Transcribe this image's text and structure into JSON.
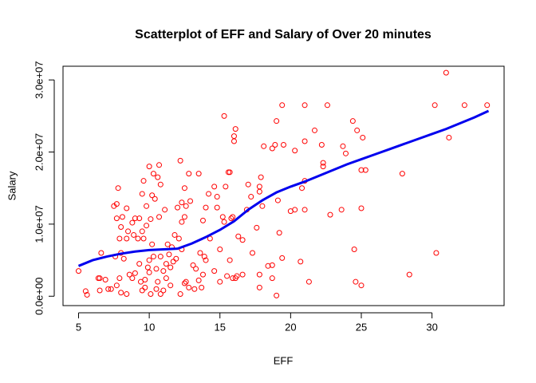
{
  "chart_data": {
    "type": "scatter",
    "title": "Scatterplot of EFF and Salary of Over 20 minutes",
    "x_label": "EFF",
    "y_label": "Salary",
    "xlim": [
      3.9,
      35.1
    ],
    "ylim": [
      -1300000,
      31900000
    ],
    "xticks": [
      5,
      10,
      15,
      20,
      25,
      30
    ],
    "yticks": [
      {
        "value": 0,
        "label": "0.0e+00"
      },
      {
        "value": 10000000,
        "label": "1.0e+07"
      },
      {
        "value": 20000000,
        "label": "2.0e+07"
      },
      {
        "value": 30000000,
        "label": "3.0e+07"
      }
    ],
    "color": "#ff0000",
    "x": [
      31.0,
      30.2,
      32.3,
      33.9,
      31.2,
      30.3,
      28.4,
      27.9,
      25.0,
      25.3,
      25.1,
      24.7,
      24.4,
      25.0,
      24.5,
      24.6,
      25.0,
      22.6,
      22.2,
      22.3,
      22.3,
      21.7,
      21.0,
      21.0,
      21.0,
      20.8,
      20.3,
      20.3,
      21.0,
      21.3,
      20.7,
      23.7,
      23.9,
      23.6,
      22.8,
      19.4,
      19.0,
      18.9,
      18.7,
      19.5,
      19.2,
      19.4,
      19.1,
      19.0,
      18.7,
      18.7,
      18.0,
      17.8,
      17.8,
      17.9,
      18.1,
      17.8,
      17.8,
      17.6,
      17.2,
      17.0,
      16.9,
      17.3,
      16.6,
      16.3,
      16.1,
      16.0,
      16.0,
      15.9,
      15.7,
      15.6,
      15.3,
      15.4,
      15.8,
      15.7,
      15.3,
      15.2,
      15.0,
      14.8,
      14.8,
      14.6,
      14.2,
      14.0,
      14.3,
      13.9,
      13.8,
      14.6,
      15.0,
      15.5,
      16.1,
      16.2,
      16.6,
      15.9,
      13.5,
      12.8,
      12.2,
      12.5,
      12.3,
      12.6,
      12.9,
      12.5,
      12.3,
      12.0,
      11.8,
      12.1,
      12.3,
      11.9,
      11.6,
      11.7,
      11.3,
      11.4,
      11.2,
      11.5,
      11.0,
      11.2,
      11.5,
      12.6,
      12.8,
      13.2,
      13.5,
      13.3,
      12.5,
      13.1,
      13.6,
      13.8,
      13.7,
      14.0,
      10.7,
      10.6,
      10.8,
      10.3,
      10.0,
      9.6,
      9.5,
      10.2,
      10.4,
      9.8,
      11.1,
      10.7,
      10.1,
      9.3,
      9.8,
      9.5,
      9.0,
      8.8,
      8.9,
      8.4,
      9.2,
      9.6,
      10.2,
      10.3,
      10.8,
      10.0,
      9.9,
      9.3,
      9.0,
      8.8,
      9.4,
      9.7,
      10.0,
      10.5,
      10.6,
      10.5,
      10.8,
      9.7,
      10.1,
      9.5,
      8.4,
      8.1,
      7.5,
      7.7,
      7.8,
      7.7,
      8.5,
      8.0,
      7.9,
      8.0,
      8.2,
      7.6,
      8.6,
      7.9,
      7.7,
      7.3,
      8.0,
      8.4,
      5.0,
      5.5,
      5.6,
      6.4,
      6.5,
      6.6,
      6.9,
      7.1,
      6.5,
      12.2,
      11.0,
      18.4,
      20.0
    ],
    "values": [
      31000000,
      26500000,
      26500000,
      26500000,
      22000000,
      6000000,
      3000000,
      17000000,
      17500000,
      17500000,
      22000000,
      23000000,
      24300000,
      12200000,
      6500000,
      2000000,
      1500000,
      26500000,
      21000000,
      18500000,
      18000000,
      23000000,
      26500000,
      21500000,
      16000000,
      15000000,
      20200000,
      12000000,
      12000000,
      2000000,
      4800000,
      20800000,
      19800000,
      12000000,
      11300000,
      26500000,
      24300000,
      21000000,
      20500000,
      21000000,
      8800000,
      5300000,
      13300000,
      100000,
      2500000,
      4300000,
      12500000,
      15200000,
      14500000,
      16500000,
      20800000,
      3000000,
      1200000,
      9500000,
      13800000,
      15500000,
      12000000,
      6000000,
      7800000,
      8300000,
      23200000,
      22200000,
      21500000,
      11000000,
      17200000,
      17200000,
      25000000,
      15200000,
      10800000,
      5000000,
      10300000,
      11000000,
      6500000,
      13800000,
      12300000,
      15200000,
      14200000,
      12300000,
      8000000,
      5500000,
      10500000,
      3500000,
      2000000,
      2800000,
      2500000,
      2800000,
      3000000,
      2500000,
      17000000,
      17000000,
      18800000,
      15000000,
      13000000,
      12500000,
      13200000,
      11000000,
      10300000,
      12300000,
      8500000,
      8000000,
      6500000,
      5200000,
      6800000,
      4800000,
      7200000,
      5800000,
      4500000,
      4000000,
      3500000,
      2500000,
      1500000,
      2000000,
      1200000,
      1000000,
      2200000,
      3800000,
      1800000,
      4300000,
      6000000,
      3000000,
      1200000,
      5000000,
      18200000,
      16500000,
      15500000,
      17000000,
      18000000,
      16000000,
      14200000,
      14000000,
      13500000,
      12500000,
      12000000,
      11000000,
      10700000,
      10800000,
      9800000,
      9000000,
      10800000,
      10200000,
      8500000,
      8000000,
      8000000,
      8000000,
      7200000,
      5500000,
      5500000,
      5000000,
      4000000,
      4500000,
      3200000,
      2500000,
      2000000,
      2300000,
      3300000,
      3800000,
      2000000,
      1000000,
      300000,
      1200000,
      300000,
      800000,
      12200000,
      11000000,
      12500000,
      12800000,
      15000000,
      10800000,
      9000000,
      9600000,
      8000000,
      6000000,
      5200000,
      5500000,
      3000000,
      2500000,
      1500000,
      1000000,
      500000,
      300000,
      3500000,
      700000,
      200000,
      2500000,
      2500000,
      6000000,
      2300000,
      1000000,
      800000,
      300000,
      800000,
      4200000,
      11800000
    ],
    "smooth_color": "#0000ee",
    "smooth_x": [
      5,
      6,
      7,
      8,
      9,
      10,
      11,
      12,
      13,
      14,
      15,
      16,
      17,
      18,
      19,
      20,
      21,
      22,
      23,
      24,
      25,
      26,
      27,
      28,
      29,
      30,
      31,
      32,
      33,
      34
    ],
    "smooth_values": [
      4200000,
      5000000,
      5500000,
      5900000,
      6200000,
      6400000,
      6500000,
      6600000,
      7300000,
      8200000,
      9200000,
      10400000,
      12000000,
      13300000,
      14400000,
      15200000,
      15900000,
      16700000,
      17500000,
      18300000,
      19000000,
      19700000,
      20400000,
      21100000,
      21800000,
      22500000,
      23200000,
      24000000,
      24800000,
      25700000
    ]
  }
}
